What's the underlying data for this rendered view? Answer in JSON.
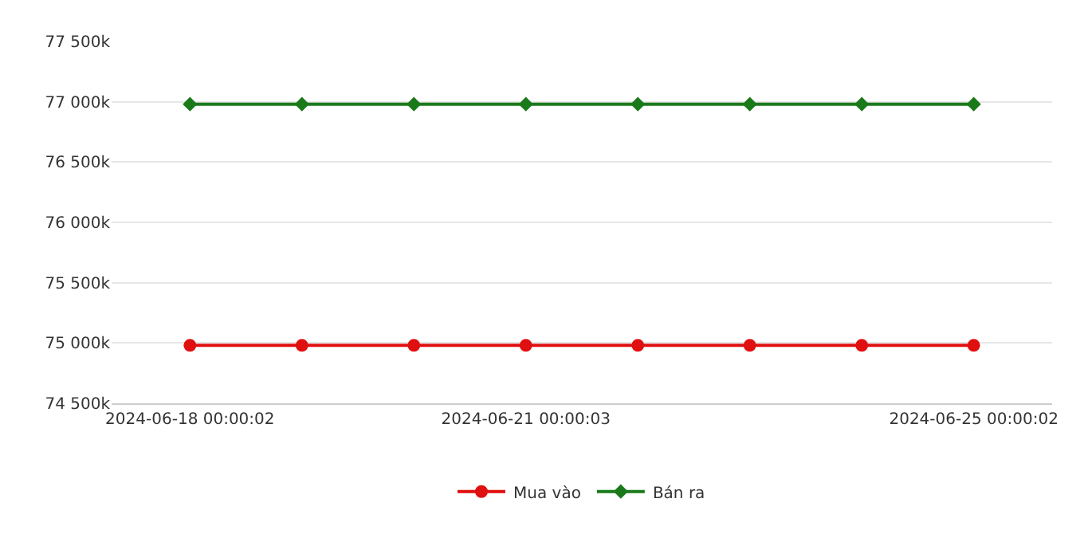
{
  "chart_data": {
    "type": "line",
    "categories": [
      "2024-06-18 00:00:02",
      null,
      null,
      "2024-06-21 00:00:03",
      null,
      null,
      null,
      "2024-06-25 00:00:02"
    ],
    "series": [
      {
        "name": "Mua vào",
        "color": "#e01010",
        "marker": "circle",
        "values": [
          74980,
          74980,
          74980,
          74980,
          74980,
          74980,
          74980,
          74980
        ]
      },
      {
        "name": "Bán ra",
        "color": "#1a7a1a",
        "marker": "diamond",
        "values": [
          76980,
          76980,
          76980,
          76980,
          76980,
          76980,
          76980,
          76980
        ]
      }
    ],
    "ylim": [
      74500,
      77500
    ],
    "yticks": [
      {
        "value": 74500,
        "label": "74 500k"
      },
      {
        "value": 75000,
        "label": "75 000k"
      },
      {
        "value": 75500,
        "label": "75 500k"
      },
      {
        "value": 76000,
        "label": "76 000k"
      },
      {
        "value": 76500,
        "label": "76 500k"
      },
      {
        "value": 77000,
        "label": "77 000k"
      },
      {
        "value": 77500,
        "label": "77 500k"
      }
    ],
    "grid": "y",
    "legend": "bottom",
    "line_style": "solid"
  }
}
